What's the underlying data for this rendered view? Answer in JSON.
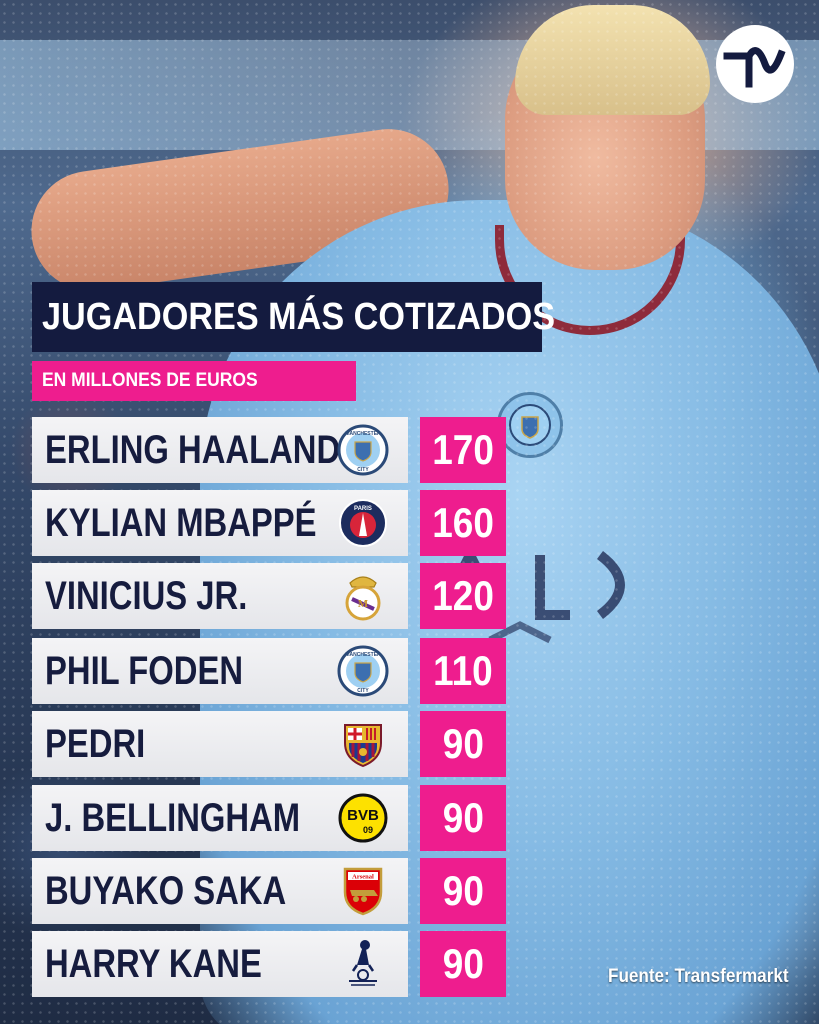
{
  "brand": {
    "logo_name": "tn-logo",
    "accent": "#ee1d8e",
    "navy": "#141b3f"
  },
  "title": "JUGADORES MÁS COTIZADOS",
  "subtitle": "EN MILLONES DE EUROS",
  "players": [
    {
      "name": "ERLING HAALAND",
      "club_icon": "manchester-city-crest-icon",
      "value": "170"
    },
    {
      "name": "KYLIAN MBAPPÉ",
      "club_icon": "psg-crest-icon",
      "value": "160"
    },
    {
      "name": "VINICIUS JR.",
      "club_icon": "real-madrid-crest-icon",
      "value": "120"
    },
    {
      "name": "PHIL FODEN",
      "club_icon": "manchester-city-crest-icon",
      "value": "110"
    },
    {
      "name": "PEDRI",
      "club_icon": "barcelona-crest-icon",
      "value": "90"
    },
    {
      "name": "J. BELLINGHAM",
      "club_icon": "dortmund-crest-icon",
      "value": "90"
    },
    {
      "name": "BUYAKO SAKA",
      "club_icon": "arsenal-crest-icon",
      "value": "90"
    },
    {
      "name": "HARRY KANE",
      "club_icon": "tottenham-crest-icon",
      "value": "90"
    }
  ],
  "crest_text": {
    "city_top": "MANCHESTER",
    "city_bottom": "CITY",
    "psg": "PARIS",
    "bvb": "BVB",
    "bvb_num": "09",
    "arsenal": "Arsenal"
  },
  "source": "Fuente: Transfermarkt"
}
